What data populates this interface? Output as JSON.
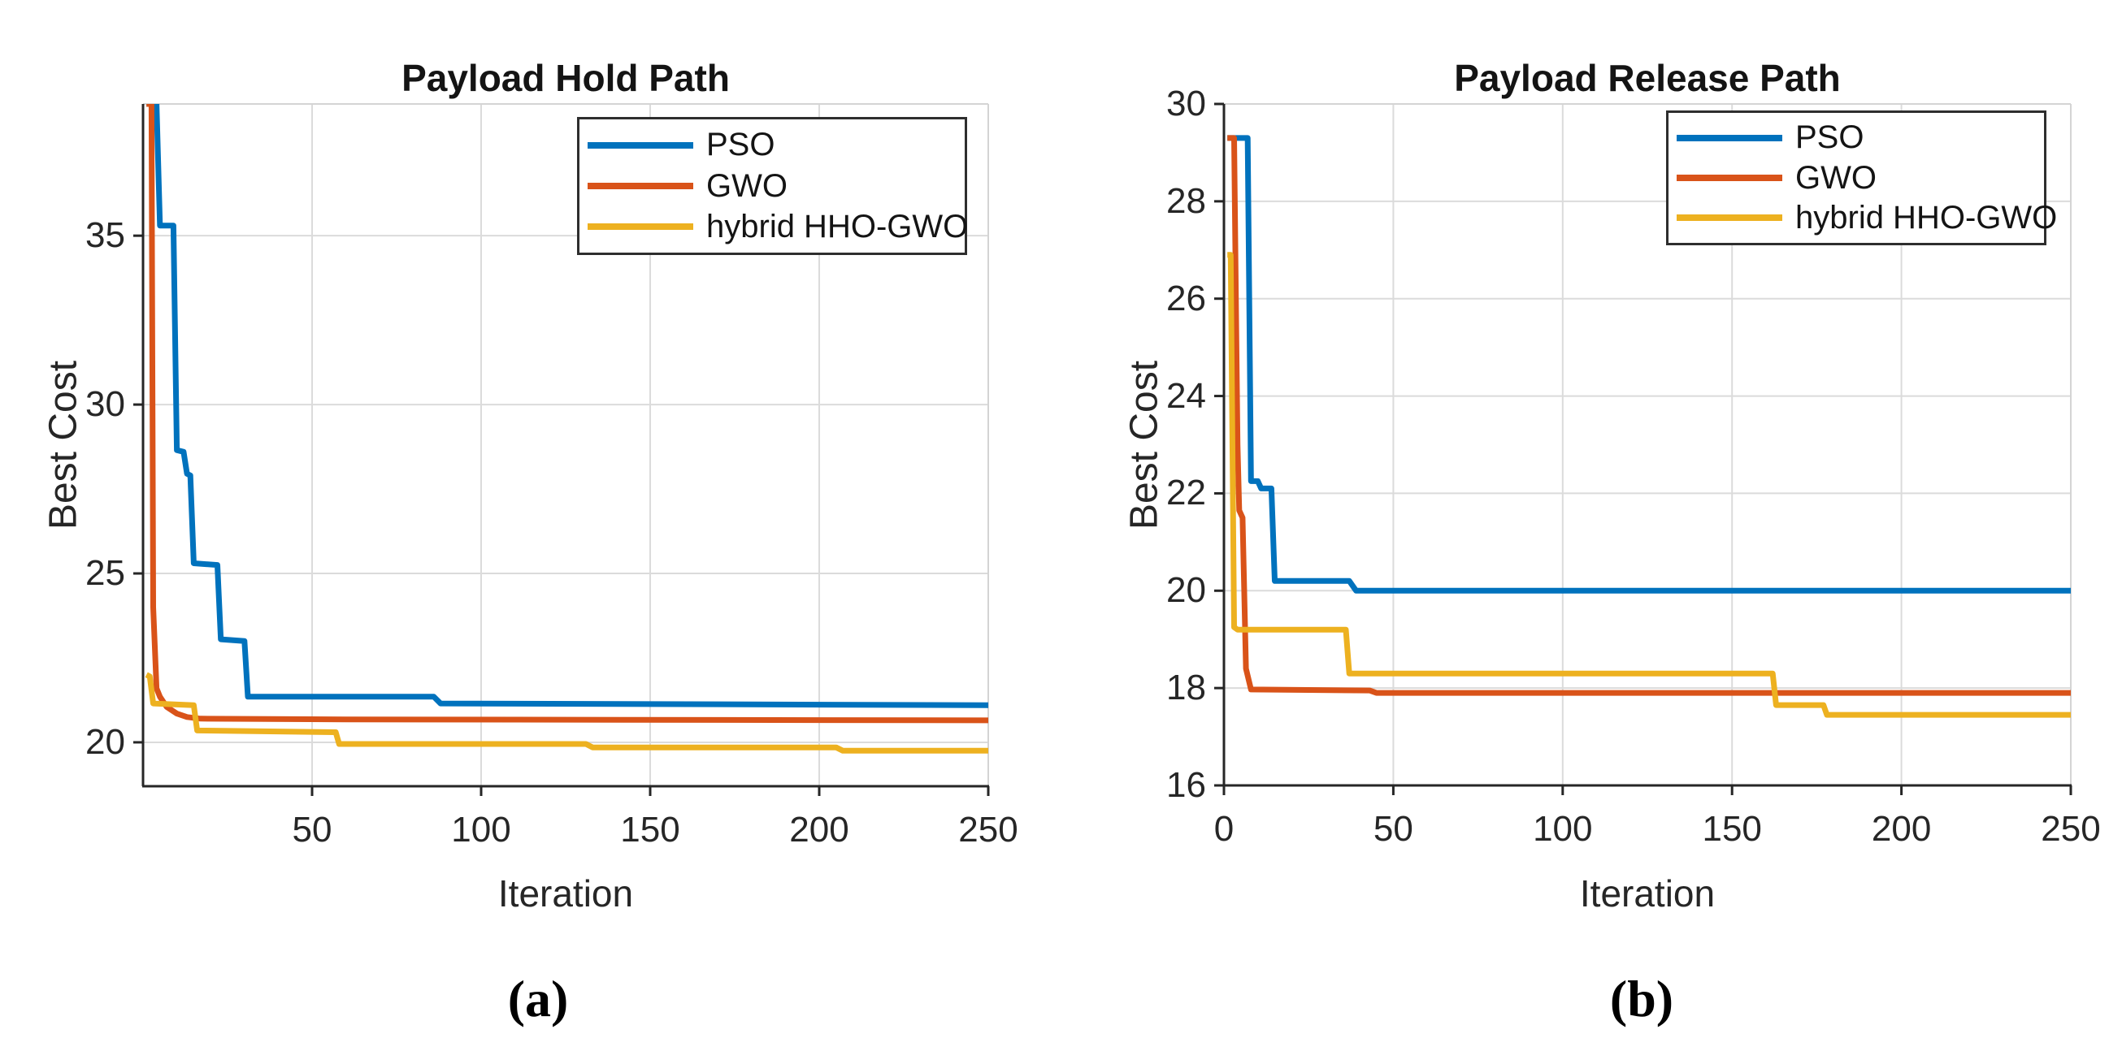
{
  "figure": {
    "background": "#ffffff",
    "colors": {
      "axis": "#262626",
      "grid": "#DBDBDB",
      "box": "#D4D4D4",
      "text": "#262626"
    }
  },
  "captions": [
    "(a)",
    "(b)"
  ],
  "chart_data": [
    {
      "type": "line",
      "title": "Payload Hold Path",
      "xlabel": "Iteration",
      "ylabel": "Best Cost",
      "xlim": [
        0,
        250
      ],
      "ylim": [
        18.7,
        38.9
      ],
      "xticks": [
        50,
        100,
        150,
        200,
        250
      ],
      "yticks": [
        20,
        25,
        30,
        35
      ],
      "grid": true,
      "legend_position": "upper right",
      "series": [
        {
          "name": "PSO",
          "color": "#0072BD",
          "points": [
            [
              1,
              38.9
            ],
            [
              4,
              38.9
            ],
            [
              5,
              35.3
            ],
            [
              9,
              35.3
            ],
            [
              10,
              28.65
            ],
            [
              12,
              28.6
            ],
            [
              13,
              27.95
            ],
            [
              14,
              27.9
            ],
            [
              15,
              25.3
            ],
            [
              22,
              25.25
            ],
            [
              23,
              23.05
            ],
            [
              30,
              23.0
            ],
            [
              31,
              21.35
            ],
            [
              86,
              21.35
            ],
            [
              88,
              21.15
            ],
            [
              250,
              21.1
            ]
          ]
        },
        {
          "name": "GWO",
          "color": "#D95319",
          "points": [
            [
              1,
              38.9
            ],
            [
              2.5,
              38.9
            ],
            [
              3,
              24.0
            ],
            [
              4,
              21.6
            ],
            [
              5,
              21.35
            ],
            [
              7,
              21.05
            ],
            [
              10,
              20.85
            ],
            [
              13,
              20.75
            ],
            [
              17,
              20.7
            ],
            [
              60,
              20.68
            ],
            [
              250,
              20.65
            ]
          ]
        },
        {
          "name": "hybrid HHO-GWO",
          "color": "#EDB120",
          "points": [
            [
              1,
              22.0
            ],
            [
              2,
              21.95
            ],
            [
              3,
              21.15
            ],
            [
              15,
              21.1
            ],
            [
              16,
              20.35
            ],
            [
              57,
              20.3
            ],
            [
              58,
              19.95
            ],
            [
              131,
              19.95
            ],
            [
              133,
              19.85
            ],
            [
              205,
              19.85
            ],
            [
              207,
              19.75
            ],
            [
              250,
              19.75
            ]
          ]
        }
      ]
    },
    {
      "type": "line",
      "title": "Payload Release Path",
      "xlabel": "Iteration",
      "ylabel": "Best Cost",
      "xlim": [
        0,
        250
      ],
      "ylim": [
        16,
        30
      ],
      "xticks": [
        0,
        50,
        100,
        150,
        200,
        250
      ],
      "yticks": [
        16,
        18,
        20,
        22,
        24,
        26,
        28,
        30
      ],
      "grid": true,
      "legend_position": "upper right",
      "series": [
        {
          "name": "PSO",
          "color": "#0072BD",
          "points": [
            [
              1,
              29.3
            ],
            [
              7,
              29.3
            ],
            [
              8,
              22.25
            ],
            [
              10,
              22.25
            ],
            [
              11,
              22.1
            ],
            [
              14,
              22.1
            ],
            [
              15,
              20.2
            ],
            [
              37,
              20.2
            ],
            [
              39,
              20.0
            ],
            [
              250,
              20.0
            ]
          ]
        },
        {
          "name": "GWO",
          "color": "#D95319",
          "points": [
            [
              1,
              29.3
            ],
            [
              3,
              29.3
            ],
            [
              4,
              23.0
            ],
            [
              4.5,
              21.65
            ],
            [
              5.5,
              21.5
            ],
            [
              6.5,
              18.4
            ],
            [
              8,
              17.97
            ],
            [
              43,
              17.95
            ],
            [
              45,
              17.9
            ],
            [
              250,
              17.9
            ]
          ]
        },
        {
          "name": "hybrid HHO-GWO",
          "color": "#EDB120",
          "points": [
            [
              1,
              26.9
            ],
            [
              2,
              26.9
            ],
            [
              3,
              19.25
            ],
            [
              4,
              19.2
            ],
            [
              36,
              19.2
            ],
            [
              37,
              18.3
            ],
            [
              162,
              18.3
            ],
            [
              163,
              17.65
            ],
            [
              177,
              17.65
            ],
            [
              178,
              17.45
            ],
            [
              250,
              17.45
            ]
          ]
        }
      ]
    }
  ]
}
